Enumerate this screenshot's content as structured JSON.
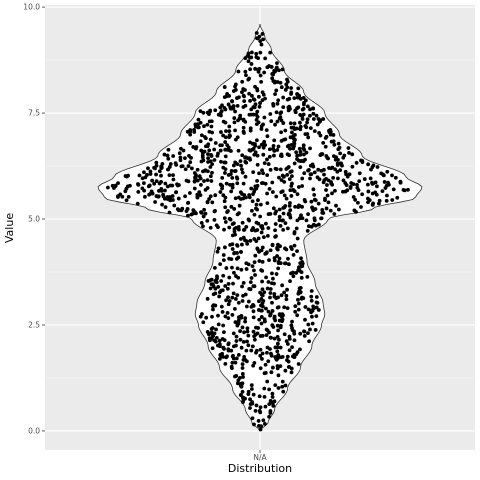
{
  "chart_data": {
    "type": "violin",
    "xlabel": "Distribution",
    "ylabel": "Value",
    "categories": [
      "NA"
    ],
    "x_tick_labels": [
      "N/A"
    ],
    "ylim": [
      -0.45,
      10.05
    ],
    "y_ticks": [
      0.0,
      2.5,
      5.0,
      7.5,
      10.0
    ],
    "y_tick_labels": [
      "0.0",
      "2.5",
      "5.0",
      "7.5",
      "10.0"
    ],
    "grid": true,
    "legend": "none",
    "colors": {
      "panel_background": "#ebebeb",
      "grid_line": "#ffffff",
      "violin_fill": "#ffffff",
      "violin_outline": "#333333",
      "points": "#000000"
    },
    "violin_profile": {
      "description_units": "y in data units, half_width as fraction of violin max half-width",
      "y": [
        0.0,
        0.2,
        0.5,
        1.0,
        1.5,
        2.0,
        2.5,
        2.75,
        3.0,
        3.5,
        4.0,
        4.5,
        5.0,
        5.25,
        5.5,
        5.75,
        6.0,
        6.5,
        7.0,
        7.5,
        8.0,
        8.5,
        9.0,
        9.3,
        9.6
      ],
      "half_width": [
        0.0,
        0.05,
        0.09,
        0.17,
        0.25,
        0.32,
        0.38,
        0.4,
        0.39,
        0.34,
        0.29,
        0.27,
        0.42,
        0.7,
        0.96,
        1.0,
        0.9,
        0.63,
        0.49,
        0.4,
        0.27,
        0.15,
        0.07,
        0.03,
        0.0
      ]
    },
    "points": {
      "count": 1500,
      "y_min": 0.0,
      "y_max": 9.6
    }
  }
}
